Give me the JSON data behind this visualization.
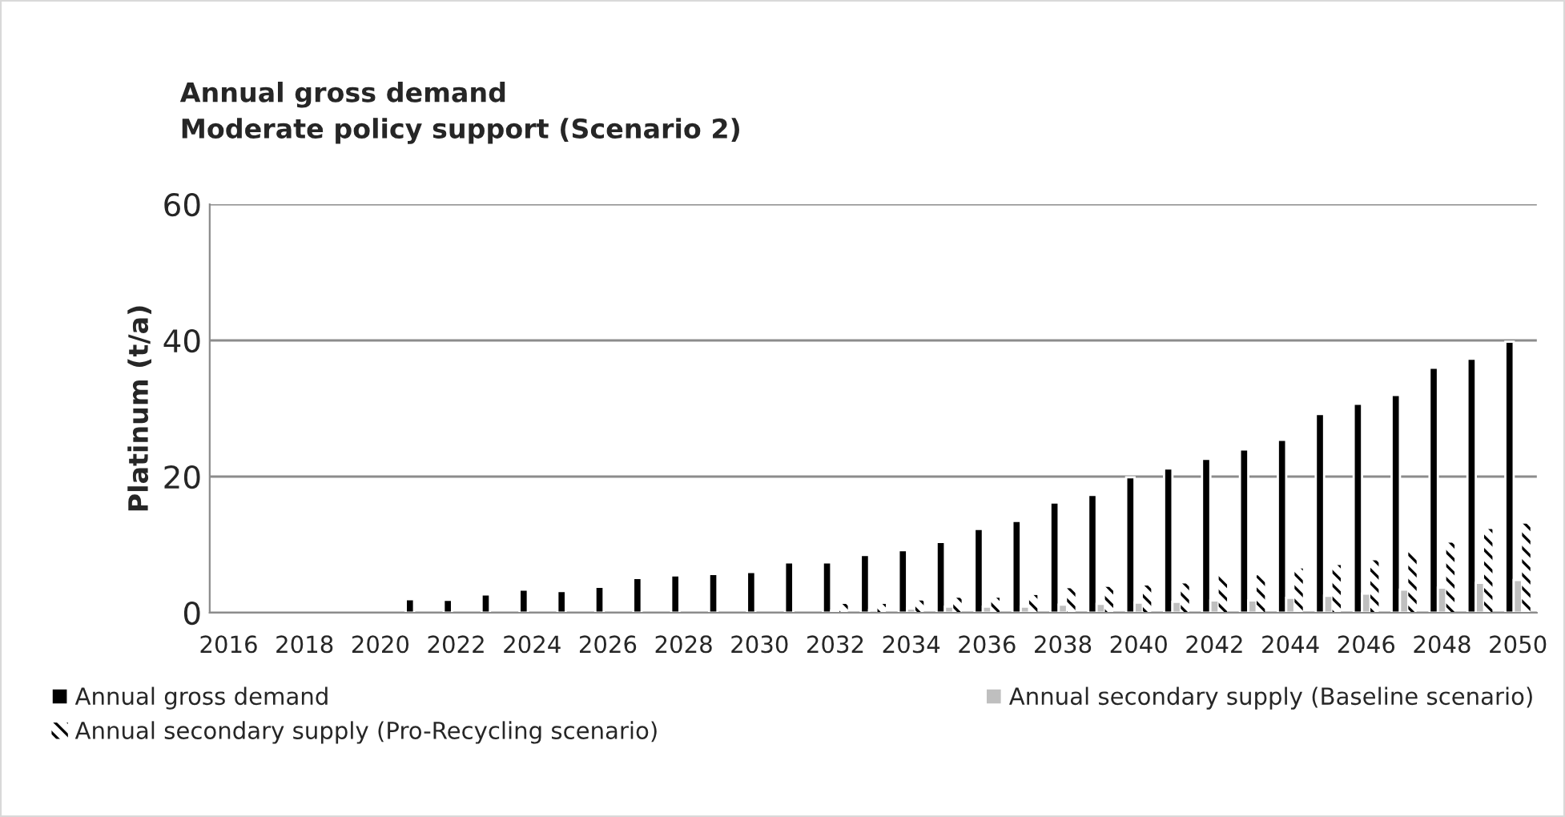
{
  "chart_data": {
    "type": "bar",
    "title": "Annual gross demand\nModerate policy support (Scenario 2)",
    "ylabel": "Platinum (t/a)",
    "categories": [
      "2016",
      null,
      "2018",
      null,
      "2020",
      null,
      "2022",
      null,
      "2024",
      null,
      "2026",
      null,
      "2028",
      null,
      "2030",
      null,
      "2032",
      null,
      "2034",
      null,
      "2036",
      null,
      "2038",
      null,
      "2040",
      null,
      "2042",
      null,
      "2044",
      null,
      "2046",
      null,
      "2048",
      null,
      "2050"
    ],
    "series": [
      {
        "name": "Annual gross demand",
        "color": "#000000",
        "values": [
          null,
          null,
          null,
          null,
          null,
          2.0,
          1.9,
          2.7,
          3.4,
          3.2,
          3.8,
          5.1,
          5.5,
          5.7,
          6.0,
          7.4,
          7.4,
          8.5,
          9.2,
          10.4,
          12.3,
          13.5,
          16.2,
          17.3,
          19.9,
          21.2,
          22.6,
          24,
          25.4,
          29.2,
          30.7,
          32,
          36,
          37.3,
          39.8
        ]
      },
      {
        "name": "Annual secondary supply (Baseline scenario)",
        "color": "#bfbfbf",
        "values": [
          null,
          null,
          null,
          null,
          null,
          null,
          null,
          null,
          null,
          null,
          null,
          null,
          null,
          null,
          null,
          null,
          0.3,
          0.4,
          0.6,
          0.9,
          0.9,
          0.9,
          1.2,
          1.3,
          1.5,
          1.6,
          1.8,
          1.8,
          2.2,
          2.5,
          2.8,
          3.4,
          3.7,
          4.4,
          4.8
        ]
      },
      {
        "name": "Annual secondary supply (Pro-Recycling scenario)",
        "color": "#000000",
        "values": [
          null,
          null,
          null,
          null,
          null,
          null,
          null,
          null,
          null,
          null,
          null,
          null,
          null,
          null,
          null,
          null,
          1.3,
          1.3,
          1.8,
          2.2,
          2.2,
          2.6,
          3.6,
          3.8,
          4.0,
          4.3,
          5.5,
          5.5,
          6.5,
          7.0,
          7.7,
          8.9,
          10.3,
          12.3,
          13.1
        ]
      }
    ],
    "ylim": [
      0,
      60
    ],
    "yticks": [
      0,
      20,
      40,
      60
    ],
    "grid": "y",
    "legend": "bottom"
  }
}
